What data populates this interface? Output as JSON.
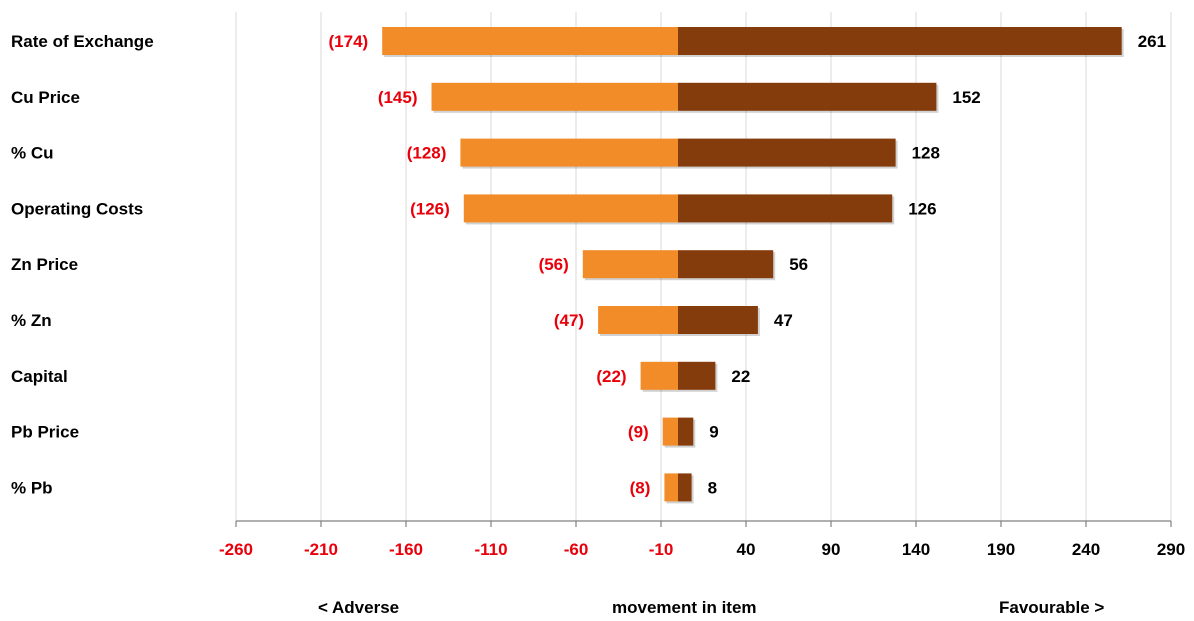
{
  "chart_data": {
    "type": "bar",
    "orientation": "horizontal",
    "stacked_diverging": true,
    "categories": [
      "Rate of Exchange",
      "Cu Price",
      "%  Cu",
      "Operating Costs",
      "Zn Price",
      "%  Zn",
      "Capital",
      "Pb Price",
      "%  Pb"
    ],
    "series": [
      {
        "role": "adverse",
        "values": [
          -174,
          -145,
          -128,
          -126,
          -56,
          -47,
          -22,
          -9,
          -8
        ],
        "labels": [
          "(174)",
          "(145)",
          "(128)",
          "(126)",
          "(56)",
          "(47)",
          "(22)",
          "(9)",
          "(8)"
        ],
        "color": "#F28C28",
        "label_color": "#E8000B"
      },
      {
        "role": "favourable",
        "values": [
          261,
          152,
          128,
          126,
          56,
          47,
          22,
          9,
          8
        ],
        "labels": [
          "261",
          "152",
          "128",
          "126",
          "56",
          "47",
          "22",
          "9",
          "8"
        ],
        "color": "#843C0C",
        "label_color": "#000000"
      }
    ],
    "x_ticks": [
      "-260",
      "-210",
      "-160",
      "-110",
      "-60",
      "-10",
      "40",
      "90",
      "140",
      "190",
      "240",
      "290"
    ],
    "x_tick_values": [
      -260,
      -210,
      -160,
      -110,
      -60,
      -10,
      40,
      90,
      140,
      190,
      240,
      290
    ],
    "negative_tick_color": "#E8000B",
    "positive_tick_color": "#000000",
    "xlim": [
      -260,
      290
    ],
    "grid": true,
    "legend": "none",
    "axis_notes": {
      "left": "< Adverse",
      "center": "movement in item",
      "right": "Favourable >"
    }
  }
}
